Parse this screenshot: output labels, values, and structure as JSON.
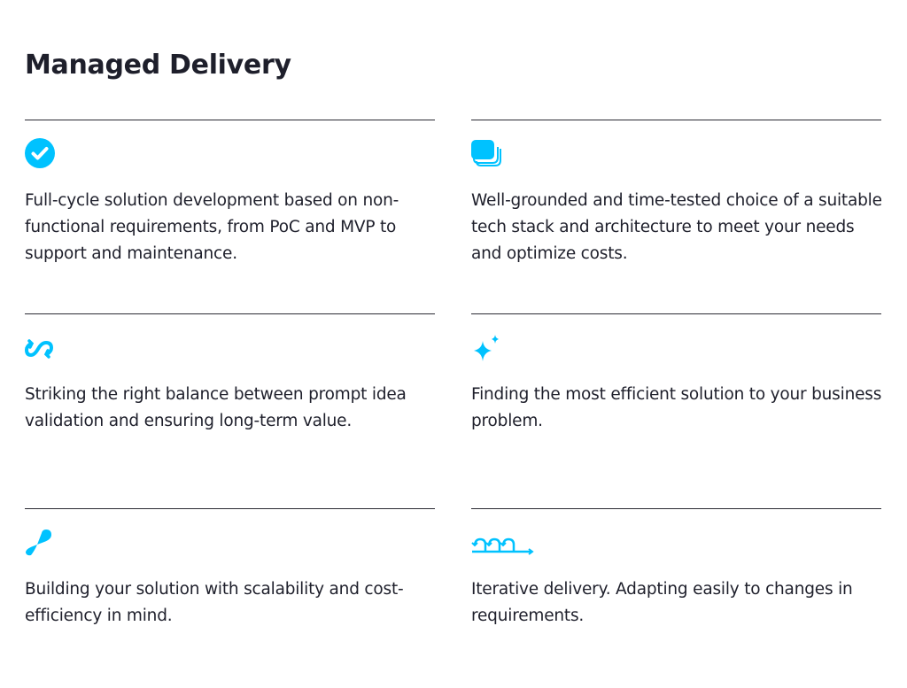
{
  "page": {
    "title": "Managed Delivery"
  },
  "accent_color": "#00C2FF",
  "cards": [
    {
      "icon": "check-circle-icon",
      "text": "Full-cycle solution development based on non-functional requirements, from PoC and MVP to support and maintenance."
    },
    {
      "icon": "stack-layers-icon",
      "text": "Well-grounded and time-tested choice of a suitable tech stack and architecture to meet your needs and optimize costs."
    },
    {
      "icon": "exchange-arrows-icon",
      "text": "Striking the right balance between prompt idea validation and ensuring long-term value."
    },
    {
      "icon": "sparkle-icon",
      "text": "Finding the most efficient solution to your business problem."
    },
    {
      "icon": "scalability-drop-icon",
      "text": "Building your solution with scalability and cost-efficiency in mind."
    },
    {
      "icon": "iterative-loops-icon",
      "text": "Iterative delivery. Adapting easily to changes in requirements."
    }
  ]
}
